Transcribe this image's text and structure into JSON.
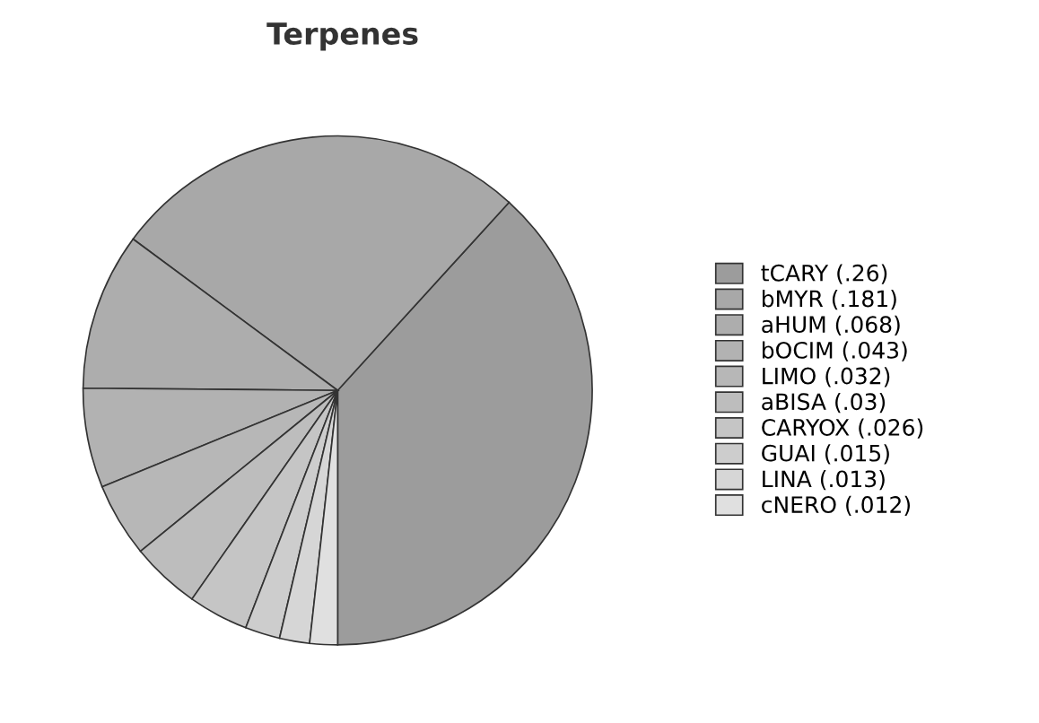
{
  "chart_data": {
    "type": "pie",
    "title": "Terpenes",
    "categories": [
      "tCARY (.26)",
      "bMYR (.181)",
      "aHUM (.068)",
      "bOCIM (.043)",
      "LIMO (.032)",
      "aBISA (.03)",
      "CARYOX (.026)",
      "GUAI (.015)",
      "LINA (.013)",
      "cNERO (.012)"
    ],
    "values": [
      38.24,
      26.62,
      10.0,
      6.32,
      4.71,
      4.41,
      3.82,
      2.21,
      1.91,
      1.76
    ],
    "colors": [
      "#9c9c9c",
      "#a8a8a8",
      "#adadad",
      "#b2b2b2",
      "#b7b7b7",
      "#bdbdbd",
      "#c5c5c5",
      "#cdcdcd",
      "#d6d6d6",
      "#e0e0e0"
    ],
    "legend": "right"
  }
}
